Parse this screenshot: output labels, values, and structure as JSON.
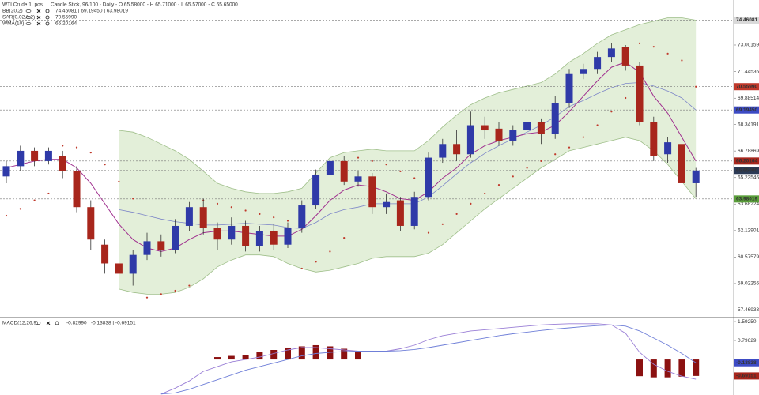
{
  "chart_data": [
    {
      "type": "candlestick",
      "title": "WTI Crude 1. pos",
      "subtitle": "Candle Stick, 96/100 - Daily - O 65.58000 - H 65.71000 - L 65.57000 - C 65.65000",
      "up_color": "#2f3aa8",
      "down_color": "#a8261c",
      "open": [
        65.3,
        65.9,
        66.8,
        66.2,
        66.5,
        65.6,
        63.5,
        61.3,
        60.2,
        59.6,
        60.7,
        61.5,
        61.0,
        62.4,
        63.5,
        62.3,
        61.6,
        62.4,
        61.2,
        62.1,
        61.3,
        62.3,
        63.6,
        65.4,
        66.2,
        65.0,
        65.3,
        63.5,
        63.9,
        62.4,
        64.1,
        66.4,
        67.2,
        66.6,
        68.3,
        68.1,
        67.4,
        68.0,
        68.5,
        67.8,
        69.6,
        71.3,
        71.6,
        72.3,
        72.9,
        71.8,
        68.5,
        66.6,
        67.2,
        64.9
      ],
      "high": [
        66.2,
        67.1,
        67.0,
        67.0,
        66.8,
        65.9,
        63.9,
        61.6,
        60.6,
        61.0,
        62.0,
        61.9,
        62.8,
        63.8,
        64.0,
        62.6,
        62.9,
        62.7,
        62.4,
        62.5,
        62.6,
        63.9,
        65.7,
        66.4,
        66.5,
        65.6,
        65.5,
        64.3,
        64.1,
        64.4,
        66.7,
        67.5,
        68.0,
        69.1,
        68.8,
        68.5,
        68.3,
        68.9,
        68.7,
        70.0,
        71.6,
        71.9,
        72.6,
        73.1,
        73.0,
        72.0,
        68.8,
        67.6,
        67.5,
        65.8
      ],
      "low": [
        64.9,
        65.6,
        65.9,
        66.0,
        65.2,
        63.2,
        61.0,
        59.6,
        58.6,
        58.9,
        60.4,
        60.6,
        60.8,
        62.1,
        61.9,
        61.0,
        61.3,
        60.9,
        60.9,
        61.0,
        61.1,
        62.0,
        63.4,
        64.9,
        64.8,
        64.7,
        63.1,
        63.1,
        62.1,
        62.2,
        63.9,
        66.1,
        66.2,
        66.4,
        67.5,
        67.1,
        67.1,
        67.8,
        67.2,
        67.5,
        69.3,
        71.0,
        71.3,
        72.0,
        71.5,
        68.3,
        66.2,
        66.1,
        64.6,
        64.1
      ],
      "close": [
        65.9,
        66.8,
        66.2,
        66.8,
        65.6,
        63.5,
        61.6,
        60.2,
        59.6,
        60.7,
        61.5,
        61.0,
        62.4,
        63.5,
        62.3,
        61.6,
        62.4,
        61.2,
        62.1,
        61.3,
        62.3,
        63.6,
        65.4,
        66.2,
        65.0,
        65.3,
        63.5,
        63.8,
        62.4,
        64.1,
        66.4,
        67.2,
        66.6,
        68.3,
        68.0,
        67.4,
        68.0,
        68.5,
        67.8,
        69.6,
        71.3,
        71.6,
        72.3,
        72.8,
        71.8,
        68.5,
        66.5,
        67.3,
        64.9,
        65.65
      ],
      "bands": {
        "name": "BB(20,2)",
        "legend_values": "74.46081 | 69.19450 | 63.98019",
        "legend_color": "#2f3aa8",
        "fill": "#e3efd9",
        "edge": "#9fbf8a",
        "middle_color": "#7d86c8",
        "upper": [
          null,
          null,
          null,
          null,
          null,
          null,
          null,
          null,
          68.0,
          67.9,
          67.6,
          67.2,
          66.8,
          66.3,
          65.6,
          64.9,
          64.6,
          64.4,
          64.3,
          64.3,
          64.4,
          64.6,
          65.5,
          66.4,
          66.7,
          66.8,
          66.9,
          66.8,
          66.8,
          66.8,
          67.4,
          68.2,
          68.9,
          69.5,
          69.9,
          70.2,
          70.4,
          70.6,
          70.8,
          71.3,
          72.0,
          72.5,
          73.1,
          73.6,
          73.9,
          74.2,
          74.4,
          74.6,
          74.6,
          74.46
        ],
        "middle": [
          null,
          null,
          null,
          null,
          null,
          null,
          null,
          null,
          63.35,
          63.2,
          63.0,
          62.8,
          62.65,
          62.55,
          62.45,
          62.45,
          62.5,
          62.55,
          62.5,
          62.45,
          62.3,
          62.25,
          62.6,
          63.1,
          63.35,
          63.5,
          63.7,
          63.7,
          63.7,
          63.7,
          64.1,
          64.75,
          65.45,
          66.1,
          66.65,
          67.1,
          67.5,
          67.9,
          68.3,
          68.8,
          69.4,
          69.75,
          70.15,
          70.5,
          70.75,
          70.8,
          70.6,
          70.3,
          69.9,
          69.19
        ],
        "lower": [
          null,
          null,
          null,
          null,
          null,
          null,
          null,
          null,
          58.7,
          58.5,
          58.4,
          58.4,
          58.5,
          58.8,
          59.3,
          60.0,
          60.4,
          60.7,
          60.7,
          60.6,
          60.2,
          59.9,
          59.7,
          59.8,
          60.0,
          60.2,
          60.5,
          60.6,
          60.6,
          60.6,
          60.8,
          61.3,
          62.0,
          62.7,
          63.4,
          64.0,
          64.6,
          65.2,
          65.8,
          66.3,
          66.8,
          67.0,
          67.2,
          67.4,
          67.6,
          67.4,
          66.8,
          66.0,
          65.0,
          63.98
        ]
      },
      "series": [
        {
          "name": "SAR(0.02,0.2)",
          "legend_values": "70.55990",
          "kind": "dots",
          "color": "#c0392b",
          "values": [
            63.0,
            63.4,
            63.9,
            64.3,
            67.1,
            67.0,
            66.7,
            66.0,
            65.0,
            64.0,
            58.2,
            58.4,
            58.6,
            58.9,
            63.9,
            63.7,
            63.5,
            63.3,
            63.1,
            62.9,
            62.7,
            59.9,
            60.3,
            60.9,
            61.7,
            66.4,
            66.2,
            66.0,
            65.6,
            65.2,
            62.0,
            62.5,
            63.1,
            63.7,
            64.3,
            64.8,
            65.3,
            65.8,
            66.2,
            66.6,
            67.0,
            67.6,
            68.3,
            69.1,
            69.9,
            73.1,
            72.9,
            72.5,
            72.1,
            70.56
          ]
        },
        {
          "name": "WMA(10)",
          "legend_values": "66.20164",
          "kind": "line",
          "color": "#a0308f",
          "values": [
            65.8,
            66.0,
            66.2,
            66.3,
            66.3,
            65.8,
            64.9,
            63.7,
            62.5,
            61.6,
            61.1,
            60.9,
            61.1,
            61.6,
            62.0,
            62.1,
            62.1,
            62.0,
            61.9,
            61.8,
            61.8,
            62.2,
            63.0,
            63.9,
            64.5,
            64.8,
            64.7,
            64.4,
            64.0,
            63.9,
            64.4,
            65.2,
            65.8,
            66.6,
            67.1,
            67.4,
            67.6,
            67.8,
            67.9,
            68.3,
            69.1,
            70.0,
            70.9,
            71.7,
            72.0,
            71.4,
            70.0,
            69.0,
            67.6,
            66.2
          ]
        }
      ],
      "ylim": [
        57.12,
        75.64
      ],
      "yticks": [
        73.00159,
        71.44536,
        69.88514,
        68.34191,
        66.78869,
        65.23546,
        63.68224,
        62.12901,
        60.57579,
        59.02256,
        57.46933
      ],
      "price_labels": [
        {
          "value": 74.46081,
          "label": "74.46081",
          "color": "#d9d9d9",
          "text_color": "#222222"
        },
        {
          "value": 70.5599,
          "label": "70.55990",
          "color": "#c0392b",
          "text_color": "#ffffff"
        },
        {
          "value": 69.1945,
          "label": "69.19450",
          "color": "#3d4bc4",
          "text_color": "#ffffff"
        },
        {
          "value": 66.20164,
          "label": "66.20164",
          "color": "#a8261c",
          "text_color": "#ffffff"
        },
        {
          "value": 65.65,
          "label": "65.65000",
          "color": "#2b3a55",
          "text_color": "#ffffff"
        },
        {
          "value": 63.98019,
          "label": "63.98019",
          "color": "#5a9e3a",
          "text_color": "#ffffff"
        }
      ]
    },
    {
      "type": "bar",
      "title": "MACD(12,26,9)",
      "subtitle": "-0.82990 | -0.13838 | -0.69151",
      "color": "#8b1111",
      "values": [
        null,
        null,
        null,
        null,
        null,
        null,
        null,
        null,
        null,
        null,
        null,
        null,
        null,
        null,
        null,
        0.1,
        0.15,
        0.2,
        0.3,
        0.4,
        0.5,
        0.55,
        0.6,
        0.55,
        0.45,
        0.3,
        null,
        null,
        null,
        null,
        null,
        null,
        null,
        null,
        null,
        null,
        null,
        null,
        null,
        null,
        null,
        null,
        null,
        null,
        null,
        -0.7,
        -0.75,
        -0.75,
        -0.72,
        -0.69
      ],
      "lines": [
        {
          "color": "#9a7fd6",
          "values": [
            null,
            null,
            null,
            null,
            null,
            null,
            null,
            null,
            null,
            null,
            null,
            -1.45,
            -1.2,
            -0.9,
            -0.5,
            -0.3,
            -0.1,
            0.0,
            0.1,
            0.25,
            0.4,
            0.5,
            0.5,
            0.45,
            0.4,
            0.35,
            0.33,
            0.35,
            0.45,
            0.6,
            0.83,
            1.0,
            1.1,
            1.2,
            1.25,
            1.3,
            1.35,
            1.4,
            1.45,
            1.48,
            1.5,
            1.5,
            1.5,
            1.45,
            1.1,
            0.3,
            -0.2,
            -0.5,
            -0.7,
            -0.83
          ]
        },
        {
          "color": "#6f7fd8",
          "values": [
            null,
            null,
            null,
            null,
            null,
            null,
            null,
            null,
            null,
            null,
            null,
            -1.45,
            -1.4,
            -1.25,
            -1.05,
            -0.85,
            -0.65,
            -0.45,
            -0.3,
            -0.15,
            0.0,
            0.15,
            0.25,
            0.3,
            0.33,
            0.35,
            0.35,
            0.35,
            0.37,
            0.42,
            0.5,
            0.6,
            0.7,
            0.8,
            0.9,
            1.0,
            1.08,
            1.15,
            1.22,
            1.28,
            1.33,
            1.38,
            1.42,
            1.45,
            1.4,
            1.2,
            0.9,
            0.6,
            0.25,
            -0.14
          ]
        }
      ],
      "ylim": [
        -1.49,
        1.66
      ],
      "yticks": [
        {
          "value": 1.5925,
          "label": "1.59250"
        },
        0.79629
      ],
      "price_labels": [
        {
          "value": -0.13838,
          "label": "-0.13838",
          "color": "#3d4bc4",
          "text_color": "#ffffff"
        },
        {
          "value": -0.69151,
          "label": "-0.69151",
          "color": "#a8261c",
          "text_color": "#ffffff"
        }
      ]
    }
  ]
}
